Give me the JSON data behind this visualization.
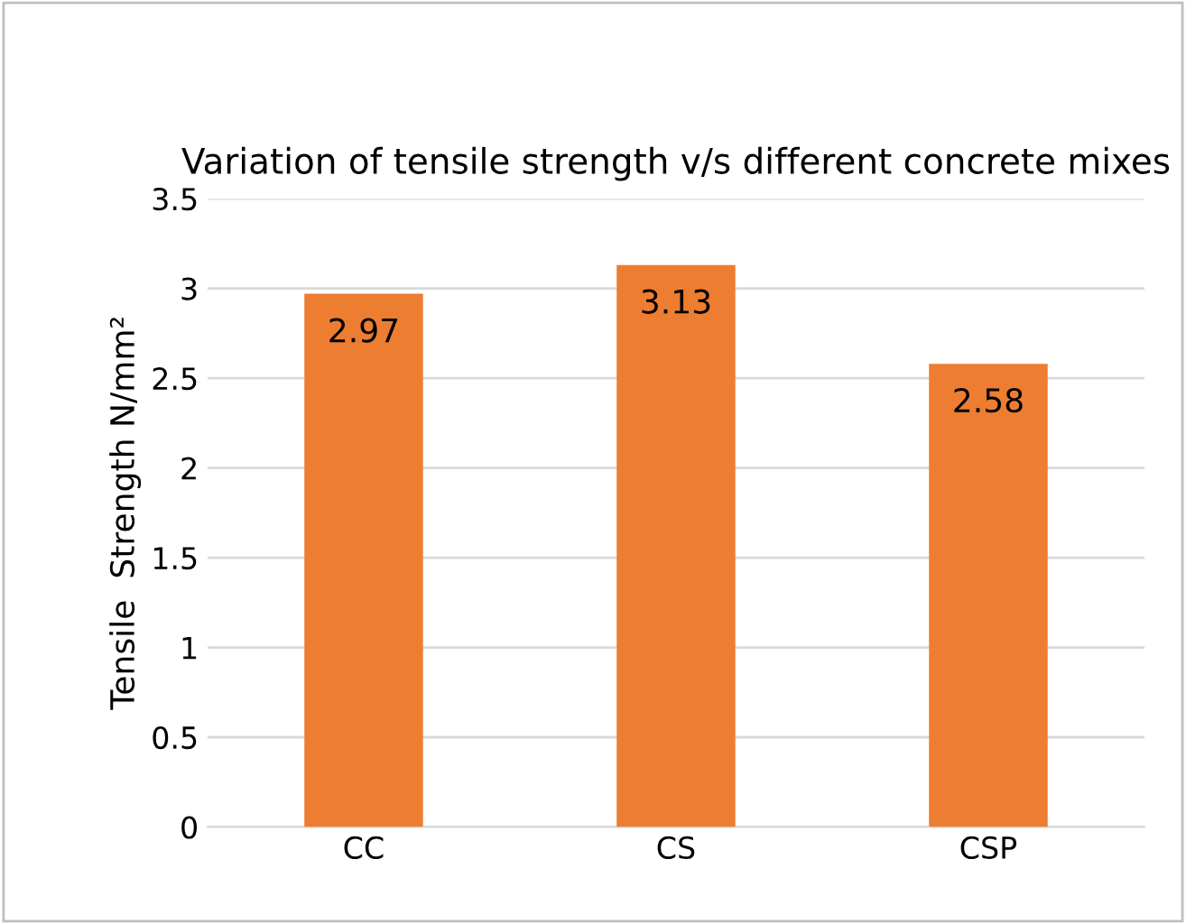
{
  "chart_data": {
    "type": "bar",
    "title": "Variation of tensile strength v/s different concrete mixes",
    "ylabel": "Tensile  Strength N/mm²",
    "categories": [
      "CC",
      "CS",
      "CSP"
    ],
    "values": [
      2.97,
      3.13,
      2.58
    ],
    "color": "#ed7d31",
    "ylim": [
      0,
      3.5
    ],
    "yticks": [
      0,
      0.5,
      1,
      1.5,
      2,
      2.5,
      3,
      3.5
    ],
    "grid": "y",
    "data_labels": true
  }
}
